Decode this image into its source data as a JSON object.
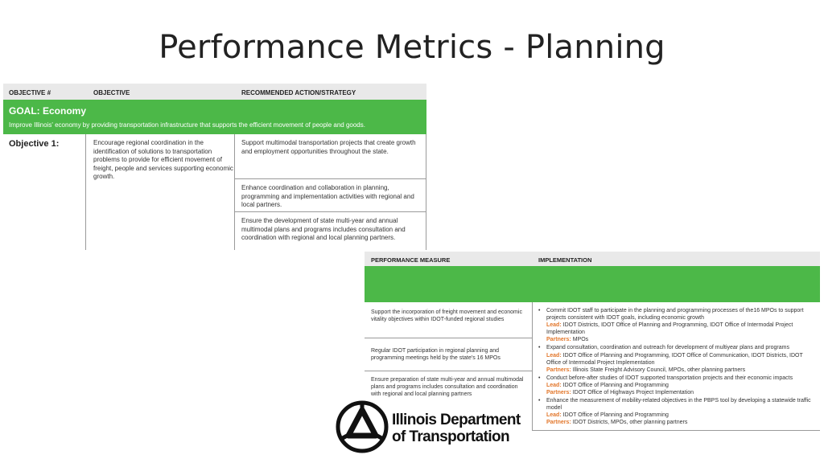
{
  "title": "Performance Metrics - Planning",
  "objectives_table": {
    "headers": [
      "OBJECTIVE #",
      "OBJECTIVE",
      "RECOMMENDED ACTION/STRATEGY"
    ],
    "goal_title": "GOAL: Economy",
    "goal_description": "Improve Illinois' economy by providing transportation infrastructure that supports the efficient movement of people and goods.",
    "objective_label": "Objective 1:",
    "objective_text": "Encourage regional coordination in the identification of solutions to transportation problems to provide for efficient movement of freight, people and services supporting economic growth.",
    "actions": [
      "Support multimodal transportation projects that create growth and employment opportunities throughout the state.",
      "Enhance coordination and collaboration in planning, programming and implementation activities with regional and local partners.",
      "Ensure the development of state multi-year and annual multimodal plans and programs includes consultation and coordination with regional and local planning partners."
    ]
  },
  "measures_table": {
    "headers": [
      "PERFORMANCE MEASURE",
      "IMPLEMENTATION"
    ],
    "measures": [
      "Support the incorporation of freight movement and economic vitality objectives within IDOT-funded regional studies",
      "Regular IDOT participation in regional planning and programming meetings held by the state's 16 MPOs",
      "Ensure preparation of state multi-year and annual multimodal plans and programs includes consultation and coordination with regional and local planning partners"
    ],
    "lead_label": "Lead:",
    "partners_label": "Partners:",
    "implementation": [
      {
        "text": "Commit IDOT staff to participate in the planning and programming processes of the16 MPOs to support projects consistent with IDOT goals, including economic growth",
        "lead": "IDOT Districts, IDOT Office of Planning and Programming, IDOT Office of Intermodal Project Implementation",
        "partners": "MPOs"
      },
      {
        "text": "Expand consultation, coordination and outreach for development of multiyear plans and programs",
        "lead": "IDOT Office of Planning and Programming, IDOT Office of Communication, IDOT Districts, IDOT Office of Intermodal Project Implementation",
        "partners": "Illinois State Freight Advisory Council, MPOs, other planning partners"
      },
      {
        "text": "Conduct before-after studies of IDOT supported transportation projects and their economic impacts",
        "lead": "IDOT Office of Planning and Programming",
        "partners": "IDOT Office of Highways Project Implementation"
      },
      {
        "text": "Enhance the measurement of mobility-related objectives in the PBPS tool by developing a statewide traffic model",
        "lead": "IDOT Office of Planning and Programming",
        "partners": "IDOT Districts, MPOs, other planning partners"
      }
    ]
  },
  "logo": {
    "line1": "Illinois Department",
    "line2": "of Transportation"
  },
  "colors": {
    "goal_green": "#4cb848",
    "header_gray": "#e9e9e9",
    "label_orange": "#e2762a"
  }
}
